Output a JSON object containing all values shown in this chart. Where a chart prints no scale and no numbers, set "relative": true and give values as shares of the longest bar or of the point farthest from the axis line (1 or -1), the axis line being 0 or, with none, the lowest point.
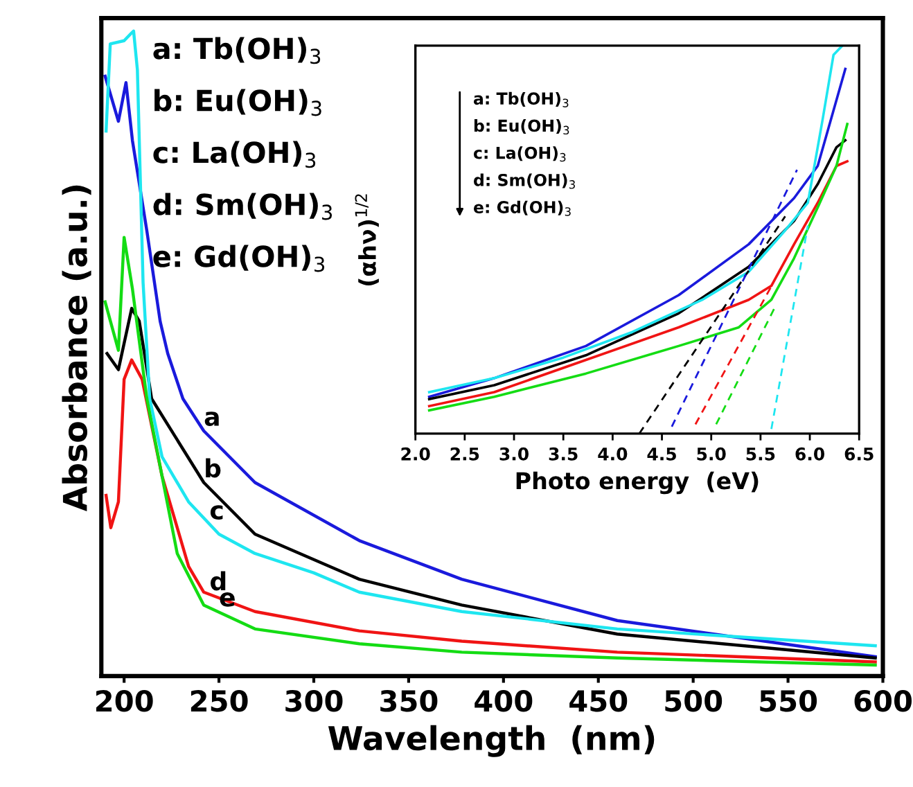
{
  "chart_data": [
    {
      "type": "line",
      "relative": true,
      "xlabel": "Wavelength  (nm)",
      "ylabel": "Absorbance (a.u.)",
      "xlim": [
        188,
        600
      ],
      "xticks": [
        200,
        250,
        300,
        350,
        400,
        450,
        500,
        550,
        600
      ],
      "tick_labels": "x",
      "legend": false,
      "grid": false,
      "annotations": [
        "a: Tb(OH)$_{3}$",
        "b: Eu(OH)$_{3}$",
        "c: La(OH)$_{3}$",
        "d: Sm(OH)$_{3}$",
        "e: Gd(OH)$_{3}$",
        {
          "text": "a",
          "x": 242,
          "y": 0.38
        },
        {
          "text": "b",
          "x": 242,
          "y": 0.3
        },
        {
          "text": "c",
          "x": 245,
          "y": 0.235
        },
        {
          "text": "d",
          "x": 245,
          "y": 0.125
        },
        {
          "text": "e",
          "x": 250,
          "y": 0.1
        }
      ],
      "series": [
        {
          "color": "#1a1adc",
          "x": [
            190,
            197,
            201,
            204.4,
            212,
            219,
            223,
            231,
            242,
            269,
            324,
            378,
            460,
            596
          ],
          "values": [
            0.93,
            0.86,
            0.92,
            0.83,
            0.69,
            0.55,
            0.5,
            0.43,
            0.38,
            0.3,
            0.21,
            0.15,
            0.086,
            0.03
          ]
        },
        {
          "color": "#000000",
          "x": [
            191,
            197,
            204,
            208,
            214.5,
            242,
            269,
            324,
            378,
            460,
            596
          ],
          "values": [
            0.5,
            0.475,
            0.57,
            0.55,
            0.43,
            0.3,
            0.22,
            0.15,
            0.11,
            0.065,
            0.028
          ]
        },
        {
          "color": "#1ee6f0",
          "x": [
            190.5,
            192.7,
            200,
            203.6,
            205,
            207,
            210,
            213.5,
            220,
            234,
            250,
            269,
            300,
            324,
            378,
            460,
            596
          ],
          "values": [
            0.845,
            0.98,
            0.985,
            0.996,
            1.0,
            0.94,
            0.61,
            0.43,
            0.34,
            0.27,
            0.22,
            0.19,
            0.16,
            0.13,
            0.1,
            0.073,
            0.047
          ]
        },
        {
          "color": "#f01414",
          "x": [
            190.5,
            193,
            197,
            200,
            204,
            209.5,
            220,
            234,
            242,
            269,
            324,
            378,
            460,
            596
          ],
          "values": [
            0.28,
            0.23,
            0.27,
            0.46,
            0.49,
            0.46,
            0.31,
            0.17,
            0.13,
            0.1,
            0.07,
            0.054,
            0.037,
            0.022
          ]
        },
        {
          "color": "#14dc14",
          "x": [
            190,
            197,
            200,
            204.4,
            212,
            228,
            242,
            269,
            324,
            378,
            460,
            596
          ],
          "values": [
            0.58,
            0.505,
            0.68,
            0.6,
            0.43,
            0.19,
            0.11,
            0.073,
            0.05,
            0.037,
            0.028,
            0.017
          ]
        }
      ]
    },
    {
      "type": "line",
      "relative": true,
      "xlabel": "Photo energy  (eV)",
      "ylabel": "(αhν)$^{1/2}$",
      "xlim": [
        2.0,
        6.5
      ],
      "xticks": [
        {
          "value": 2.0,
          "label": "2.0"
        },
        {
          "value": 2.5,
          "label": "2.5"
        },
        {
          "value": 3.0,
          "label": "3.0"
        },
        {
          "value": 3.5,
          "label": "3.5"
        },
        {
          "value": 4.0,
          "label": "4.0"
        },
        {
          "value": 4.5,
          "label": "4.5"
        },
        {
          "value": 5.0,
          "label": "5.0"
        },
        {
          "value": 5.5,
          "label": "5.5"
        },
        {
          "value": 6.0,
          "label": "6.0"
        },
        {
          "value": 6.5,
          "label": "6.5"
        }
      ],
      "tick_labels": "x",
      "legend": false,
      "grid": false,
      "annotations": [
        "a: Tb(OH)$_{3}$",
        "b: Eu(OH)$_{3}$",
        "c: La(OH)$_{3}$",
        "d: Sm(OH)$_{3}$",
        "e: Gd(OH)$_{3}$"
      ],
      "series": [
        {
          "color": "#1a1adc",
          "x": [
            2.14,
            2.8,
            3.73,
            4.67,
            5.38,
            5.84,
            6.08,
            6.36
          ],
          "values": [
            0.095,
            0.143,
            0.226,
            0.357,
            0.488,
            0.607,
            0.69,
            0.94
          ]
        },
        {
          "color": "#000000",
          "x": [
            2.14,
            2.8,
            3.73,
            4.67,
            5.38,
            5.84,
            6.08,
            6.27,
            6.36
          ],
          "values": [
            0.089,
            0.125,
            0.202,
            0.31,
            0.43,
            0.548,
            0.643,
            0.738,
            0.756
          ]
        },
        {
          "color": "#1ee6f0",
          "x": [
            2.14,
            2.8,
            3.5,
            4.2,
            4.91,
            5.38,
            5.75,
            5.98,
            6.13,
            6.24,
            6.33
          ],
          "values": [
            0.107,
            0.143,
            0.196,
            0.262,
            0.345,
            0.417,
            0.524,
            0.595,
            0.81,
            0.976,
            1.0
          ]
        },
        {
          "color": "#f01414",
          "x": [
            2.14,
            2.8,
            3.73,
            4.67,
            5.38,
            5.61,
            5.84,
            6.08,
            6.27,
            6.38
          ],
          "values": [
            0.071,
            0.107,
            0.19,
            0.274,
            0.345,
            0.381,
            0.488,
            0.595,
            0.69,
            0.702
          ]
        },
        {
          "color": "#14dc14",
          "x": [
            2.14,
            2.8,
            3.73,
            4.67,
            5.28,
            5.61,
            5.84,
            6.08,
            6.27,
            6.38
          ],
          "values": [
            0.06,
            0.095,
            0.155,
            0.226,
            0.274,
            0.345,
            0.452,
            0.583,
            0.69,
            0.798
          ]
        },
        {
          "color": "#000000",
          "line_style": "dashed",
          "x": [
            4.27,
            5.75
          ],
          "values": [
            0.0,
            0.56
          ]
        },
        {
          "color": "#1a1adc",
          "line_style": "dashed",
          "x": [
            4.6,
            5.87
          ],
          "values": [
            0.018,
            0.68
          ]
        },
        {
          "color": "#f01414",
          "line_style": "dashed",
          "x": [
            4.84,
            5.61
          ],
          "values": [
            0.024,
            0.38
          ]
        },
        {
          "color": "#14dc14",
          "line_style": "dashed",
          "x": [
            5.05,
            5.66
          ],
          "values": [
            0.024,
            0.333
          ]
        },
        {
          "color": "#1ee6f0",
          "line_style": "dashed",
          "x": [
            5.61,
            5.98
          ],
          "values": [
            0.012,
            0.536
          ]
        }
      ]
    }
  ]
}
